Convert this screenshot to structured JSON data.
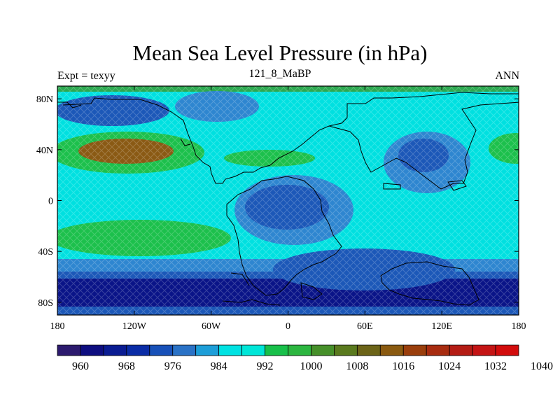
{
  "title": "Mean Sea Level Pressure (in hPa)",
  "subtitle": {
    "left": "Expt = texyy",
    "center": "121_8_MaBP",
    "right": "ANN"
  },
  "lat_ticks": [
    "80N",
    "40N",
    "0",
    "40S",
    "80S"
  ],
  "lon_ticks": [
    "180",
    "120W",
    "60W",
    "0",
    "60E",
    "120E",
    "180"
  ],
  "lat_values": [
    80,
    40,
    0,
    -40,
    -80
  ],
  "lon_values": [
    -180,
    -120,
    -60,
    0,
    60,
    120,
    180
  ],
  "colorbar": {
    "colors": [
      "#2c1a6e",
      "#0e0e80",
      "#0a1c92",
      "#0a2ca6",
      "#1750b8",
      "#2a72c6",
      "#1d9ed8",
      "#00e2e2",
      "#00e6d8",
      "#18c04a",
      "#2cb640",
      "#46902a",
      "#5a7a1e",
      "#6c6418",
      "#8a5a10",
      "#9a3e0c",
      "#a82c10",
      "#b41c14",
      "#c41414",
      "#d20c0c"
    ],
    "labels": [
      "960",
      "968",
      "976",
      "984",
      "992",
      "1000",
      "1008",
      "1016",
      "1024",
      "1032",
      "1040"
    ]
  },
  "field_colors": {
    "deep_low": "#0a1488",
    "low": "#1c58b8",
    "mid_low": "#2e86d0",
    "neutral": "#00e0e0",
    "high": "#1cc04c",
    "very_high": "#8a5a14"
  }
}
